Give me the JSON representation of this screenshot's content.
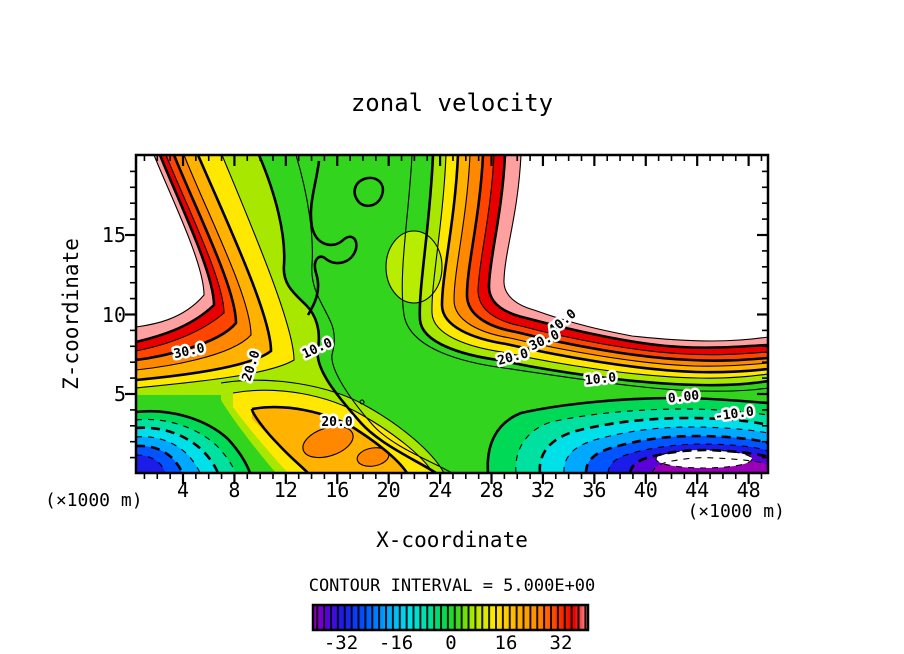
{
  "title": "zonal velocity",
  "axes": {
    "x_label": "X-coordinate",
    "y_label": "Z-coordinate",
    "x_unit_left": "(×1000 m)",
    "x_unit_right": "(×1000 m)",
    "x_ticks": [
      "4",
      "8",
      "12",
      "16",
      "20",
      "24",
      "28",
      "32",
      "36",
      "40",
      "44",
      "48"
    ],
    "y_ticks": [
      "5",
      "10",
      "15"
    ]
  },
  "legend": {
    "contour_interval_text": "CONTOUR INTERVAL = 5.000E+00",
    "colorbar_ticks": [
      "-32",
      "-16",
      "0",
      "16",
      "32"
    ]
  },
  "contour_labels": [
    {
      "text": "30.0"
    },
    {
      "text": "20.0"
    },
    {
      "text": "10.0"
    },
    {
      "text": "20.0"
    },
    {
      "text": "40.0"
    },
    {
      "text": "30.0"
    },
    {
      "text": "20.0"
    },
    {
      "text": "10.0"
    },
    {
      "text": "0.00"
    },
    {
      "text": "-10.0"
    }
  ],
  "chart_data": {
    "type": "heatmap",
    "subtype": "filled-contour",
    "title": "zonal velocity",
    "xlabel": "X-coordinate",
    "ylabel": "Z-coordinate",
    "axis_units": "(×1000 m)",
    "x_range": [
      0,
      50
    ],
    "z_range": [
      0,
      20
    ],
    "x_major_ticks": [
      4,
      8,
      12,
      16,
      20,
      24,
      28,
      32,
      36,
      40,
      44,
      48
    ],
    "z_major_ticks": [
      5,
      10,
      15
    ],
    "contour_interval": 5.0,
    "labeled_contour_values": [
      -10.0,
      0.0,
      10.0,
      20.0,
      30.0,
      40.0
    ],
    "negative_contour_style": "dashed",
    "positive_contour_style": "solid",
    "out_of_range_fill": "white",
    "colorbar": {
      "min": -40,
      "max": 40,
      "ticks": [
        -32,
        -16,
        0,
        16,
        32
      ],
      "cells": 40
    },
    "features": [
      {
        "type": "max",
        "x": 2,
        "z": 13,
        "value": "> 45",
        "note": "white region upper-left beside red band"
      },
      {
        "type": "max",
        "x": 42,
        "z": 15,
        "value": "> 45",
        "note": "large white region upper-right"
      },
      {
        "type": "ridge",
        "z": 7.7,
        "value": 40,
        "note": "warm band crossing full width, dipping in middle"
      },
      {
        "type": "min",
        "x": 44,
        "z": 1,
        "value": "< -37",
        "note": "white-cored purple/blue eddy lower-right"
      },
      {
        "type": "min",
        "x": 1,
        "z": 0.5,
        "value": -28,
        "note": "blue eddy lower-left corner"
      },
      {
        "type": "pocket",
        "x": 15,
        "z": 2.5,
        "value": 25,
        "note": "orange pocket bottom-center"
      }
    ],
    "grid_estimate": {
      "x": [
        0,
        5,
        10,
        15,
        20,
        25,
        30,
        35,
        40,
        45,
        50
      ],
      "z": [
        20,
        15,
        10,
        7.5,
        5,
        2.5,
        0
      ],
      "values": [
        [
          50,
          42,
          20,
          5,
          4,
          12,
          40,
          50,
          52,
          52,
          50
        ],
        [
          50,
          30,
          15,
          6,
          5,
          10,
          48,
          52,
          54,
          54,
          52
        ],
        [
          50,
          28,
          15,
          8,
          6,
          15,
          45,
          48,
          50,
          50,
          48
        ],
        [
          38,
          25,
          17,
          12,
          10,
          15,
          35,
          40,
          40,
          40,
          38
        ],
        [
          15,
          12,
          15,
          15,
          12,
          12,
          12,
          5,
          0,
          -5,
          5
        ],
        [
          -15,
          0,
          18,
          22,
          15,
          10,
          5,
          -10,
          -20,
          -20,
          -10
        ],
        [
          -28,
          -8,
          10,
          25,
          25,
          18,
          0,
          -25,
          -38,
          -42,
          -25
        ]
      ]
    },
    "palette_hex": [
      "#9900B8",
      "#5A00D8",
      "#1C1CE8",
      "#0055FF",
      "#00A8FF",
      "#00E0E8",
      "#00E0A0",
      "#00D955",
      "#33D41E",
      "#A8E800",
      "#FFE800",
      "#FFB300",
      "#FF8800",
      "#FF4400",
      "#E80000",
      "#FFA0A0"
    ]
  }
}
